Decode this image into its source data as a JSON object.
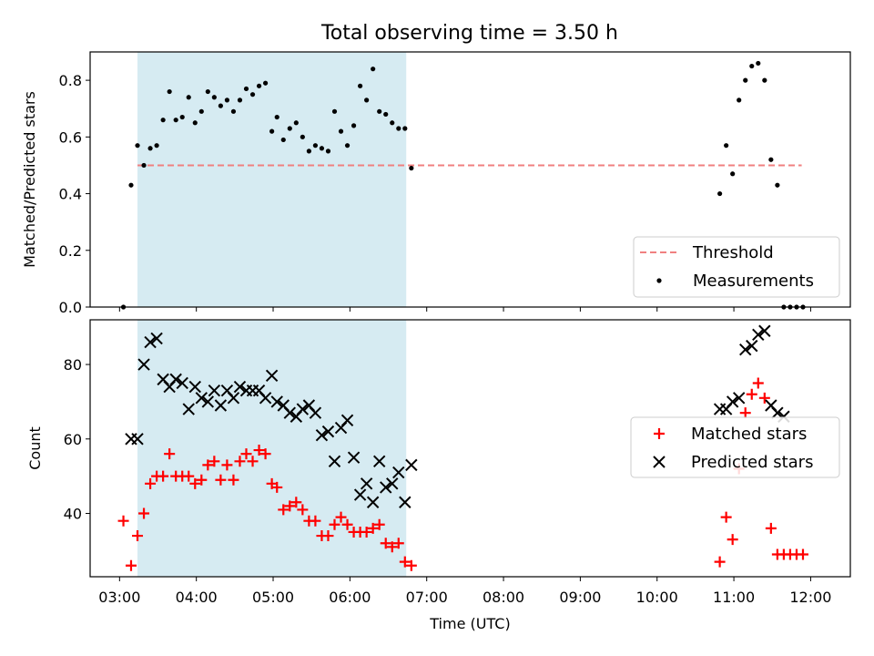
{
  "chart_data": [
    {
      "type": "scatter",
      "panel": "top",
      "title": "Total observing time = 3.50 h",
      "xlabel": "",
      "ylabel": "Matched/Predicted stars",
      "xlim": [
        "02:37",
        "12:31"
      ],
      "ylim": [
        0,
        0.9
      ],
      "yticks": [
        0.0,
        0.2,
        0.4,
        0.6,
        0.8
      ],
      "shaded_interval": [
        "03:14",
        "06:44"
      ],
      "shade_color": "#add8e6",
      "legend_position": "lower-right",
      "series": [
        {
          "name": "Threshold",
          "kind": "line",
          "style": "dashed",
          "color": "#f08080",
          "x": [
            "03:14",
            "11:53"
          ],
          "y": [
            0.5,
            0.5
          ]
        },
        {
          "name": "Measurements",
          "kind": "scatter",
          "marker": "dot",
          "color": "#000000",
          "x": [
            "03:03",
            "03:09",
            "03:14",
            "03:19",
            "03:24",
            "03:29",
            "03:34",
            "03:39",
            "03:44",
            "03:49",
            "03:54",
            "03:59",
            "04:04",
            "04:09",
            "04:14",
            "04:19",
            "04:24",
            "04:29",
            "04:34",
            "04:39",
            "04:44",
            "04:49",
            "04:54",
            "04:59",
            "05:03",
            "05:08",
            "05:13",
            "05:18",
            "05:23",
            "05:28",
            "05:33",
            "05:38",
            "05:43",
            "05:48",
            "05:53",
            "05:58",
            "06:03",
            "06:08",
            "06:13",
            "06:18",
            "06:23",
            "06:28",
            "06:33",
            "06:38",
            "06:43",
            "06:48",
            "10:49",
            "10:54",
            "10:59",
            "11:04",
            "11:09",
            "11:14",
            "11:19",
            "11:24",
            "11:29",
            "11:34",
            "11:39",
            "11:44",
            "11:49",
            "11:54"
          ],
          "y": [
            0.0,
            0.43,
            0.57,
            0.5,
            0.56,
            0.57,
            0.66,
            0.76,
            0.66,
            0.67,
            0.74,
            0.65,
            0.69,
            0.76,
            0.74,
            0.71,
            0.73,
            0.69,
            0.73,
            0.77,
            0.75,
            0.78,
            0.79,
            0.62,
            0.67,
            0.59,
            0.63,
            0.65,
            0.6,
            0.55,
            0.57,
            0.56,
            0.55,
            0.69,
            0.62,
            0.57,
            0.64,
            0.78,
            0.73,
            0.84,
            0.69,
            0.68,
            0.65,
            0.63,
            0.63,
            0.49,
            0.4,
            0.57,
            0.47,
            0.73,
            0.8,
            0.85,
            0.86,
            0.8,
            0.52,
            0.43,
            0.0,
            0.0,
            0.0,
            0.0
          ]
        }
      ]
    },
    {
      "type": "scatter",
      "panel": "bottom",
      "xlabel": "Time (UTC)",
      "ylabel": "Count",
      "xlim": [
        "02:37",
        "12:31"
      ],
      "ylim": [
        23,
        92
      ],
      "yticks": [
        40,
        60,
        80
      ],
      "xticks": [
        "03:00",
        "04:00",
        "05:00",
        "06:00",
        "07:00",
        "08:00",
        "09:00",
        "10:00",
        "11:00",
        "12:00"
      ],
      "shaded_interval": [
        "03:14",
        "06:44"
      ],
      "shade_color": "#add8e6",
      "legend_position": "right",
      "series": [
        {
          "name": "Matched stars",
          "kind": "scatter",
          "marker": "plus",
          "color": "#ff0000",
          "x": [
            "03:03",
            "03:09",
            "03:14",
            "03:19",
            "03:24",
            "03:29",
            "03:34",
            "03:39",
            "03:44",
            "03:49",
            "03:54",
            "03:59",
            "04:04",
            "04:09",
            "04:14",
            "04:19",
            "04:24",
            "04:29",
            "04:34",
            "04:39",
            "04:44",
            "04:49",
            "04:54",
            "04:59",
            "05:03",
            "05:08",
            "05:13",
            "05:18",
            "05:23",
            "05:28",
            "05:33",
            "05:38",
            "05:43",
            "05:48",
            "05:53",
            "05:58",
            "06:03",
            "06:08",
            "06:13",
            "06:18",
            "06:23",
            "06:28",
            "06:33",
            "06:38",
            "06:43",
            "06:48",
            "10:49",
            "10:54",
            "10:59",
            "11:04",
            "11:09",
            "11:14",
            "11:19",
            "11:24",
            "11:29",
            "11:34",
            "11:39",
            "11:44",
            "11:49",
            "11:54"
          ],
          "y": [
            38,
            26,
            34,
            40,
            48,
            50,
            50,
            56,
            50,
            50,
            50,
            48,
            49,
            53,
            54,
            49,
            53,
            49,
            54,
            56,
            54,
            57,
            56,
            48,
            47,
            41,
            42,
            43,
            41,
            38,
            38,
            34,
            34,
            37,
            39,
            37,
            35,
            35,
            35,
            36,
            37,
            32,
            31,
            32,
            27,
            26,
            27,
            39,
            33,
            52,
            67,
            72,
            75,
            71,
            36,
            29,
            29,
            29,
            29,
            29
          ]
        },
        {
          "name": "Predicted stars",
          "kind": "scatter",
          "marker": "x",
          "color": "#000000",
          "x": [
            "03:09",
            "03:14",
            "03:19",
            "03:24",
            "03:29",
            "03:34",
            "03:39",
            "03:44",
            "03:49",
            "03:54",
            "03:59",
            "04:04",
            "04:09",
            "04:14",
            "04:19",
            "04:24",
            "04:29",
            "04:34",
            "04:39",
            "04:44",
            "04:49",
            "04:54",
            "04:59",
            "05:03",
            "05:08",
            "05:13",
            "05:18",
            "05:23",
            "05:28",
            "05:33",
            "05:38",
            "05:43",
            "05:48",
            "05:53",
            "05:58",
            "06:03",
            "06:08",
            "06:13",
            "06:18",
            "06:23",
            "06:28",
            "06:33",
            "06:38",
            "06:43",
            "06:48",
            "10:49",
            "10:54",
            "10:59",
            "11:04",
            "11:09",
            "11:14",
            "11:19",
            "11:24",
            "11:29",
            "11:34",
            "11:39"
          ],
          "y": [
            60,
            60,
            80,
            86,
            87,
            76,
            74,
            76,
            75,
            68,
            74,
            71,
            70,
            73,
            69,
            73,
            71,
            74,
            73,
            73,
            73,
            71,
            77,
            70,
            69,
            67,
            66,
            68,
            69,
            67,
            61,
            62,
            54,
            63,
            65,
            55,
            45,
            48,
            43,
            54,
            47,
            48,
            51,
            43,
            53,
            68,
            68,
            70,
            71,
            84,
            85,
            88,
            89,
            69,
            67,
            66
          ]
        }
      ]
    }
  ]
}
